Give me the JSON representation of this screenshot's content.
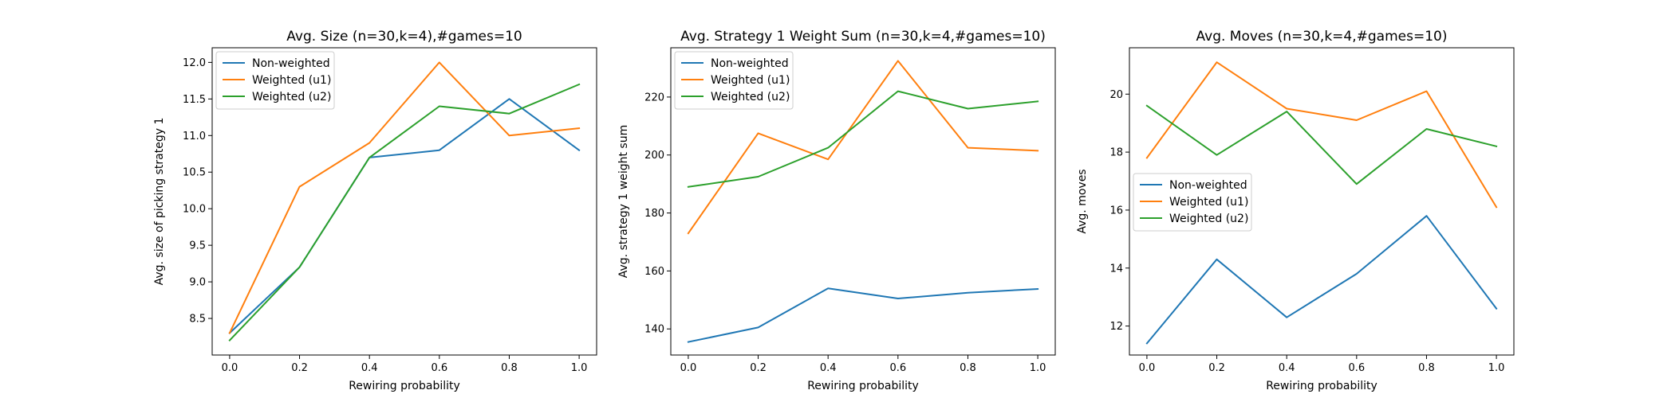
{
  "chart_data": [
    {
      "type": "line",
      "title": "Avg. Size (n=30,k=4),#games=10",
      "xlabel": "Rewiring probability",
      "ylabel": "Avg. size of picking strategy 1",
      "x": [
        0.0,
        0.2,
        0.4,
        0.6,
        0.8,
        1.0
      ],
      "xticks": [
        "0.0",
        "0.2",
        "0.4",
        "0.6",
        "0.8",
        "1.0"
      ],
      "xlim": [
        -0.05,
        1.05
      ],
      "yticks": [
        "8.5",
        "9.0",
        "9.5",
        "10.0",
        "10.5",
        "11.0",
        "11.5",
        "12.0"
      ],
      "ylim": [
        8.0,
        12.2
      ],
      "legend": "upper-left",
      "grid": false,
      "series": [
        {
          "name": "Non-weighted",
          "color": "#1f77b4",
          "values": [
            8.3,
            9.2,
            10.7,
            10.8,
            11.5,
            10.8
          ]
        },
        {
          "name": "Weighted (u1)",
          "color": "#ff7f0e",
          "values": [
            8.3,
            10.3,
            10.9,
            12.0,
            11.0,
            11.1
          ]
        },
        {
          "name": "Weighted (u2)",
          "color": "#2ca02c",
          "values": [
            8.2,
            9.2,
            10.7,
            11.4,
            11.3,
            11.7
          ]
        }
      ]
    },
    {
      "type": "line",
      "title": "Avg. Strategy 1 Weight Sum (n=30,k=4,#games=10)",
      "xlabel": "Rewiring probability",
      "ylabel": "Avg. strategy 1 weight sum",
      "x": [
        0.0,
        0.2,
        0.4,
        0.6,
        0.8,
        1.0
      ],
      "xticks": [
        "0.0",
        "0.2",
        "0.4",
        "0.6",
        "0.8",
        "1.0"
      ],
      "xlim": [
        -0.05,
        1.05
      ],
      "yticks": [
        "140",
        "160",
        "180",
        "200",
        "220"
      ],
      "ylim": [
        131,
        237
      ],
      "legend": "upper-left",
      "grid": false,
      "series": [
        {
          "name": "Non-weighted",
          "color": "#1f77b4",
          "values": [
            135.5,
            140.5,
            154.0,
            150.5,
            152.5,
            153.8
          ]
        },
        {
          "name": "Weighted (u1)",
          "color": "#ff7f0e",
          "values": [
            173.0,
            207.5,
            198.5,
            232.5,
            202.5,
            201.5
          ]
        },
        {
          "name": "Weighted (u2)",
          "color": "#2ca02c",
          "values": [
            189.0,
            192.5,
            202.5,
            222.0,
            216.0,
            218.5
          ]
        }
      ]
    },
    {
      "type": "line",
      "title": "Avg. Moves (n=30,k=4,#games=10)",
      "xlabel": "Rewiring probability",
      "ylabel": "Avg. moves",
      "x": [
        0.0,
        0.2,
        0.4,
        0.6,
        0.8,
        1.0
      ],
      "xticks": [
        "0.0",
        "0.2",
        "0.4",
        "0.6",
        "0.8",
        "1.0"
      ],
      "xlim": [
        -0.05,
        1.05
      ],
      "yticks": [
        "12",
        "14",
        "16",
        "18",
        "20"
      ],
      "ylim": [
        11.0,
        21.6
      ],
      "legend": "center-left",
      "grid": false,
      "series": [
        {
          "name": "Non-weighted",
          "color": "#1f77b4",
          "values": [
            11.4,
            14.3,
            12.3,
            13.8,
            15.8,
            12.6
          ]
        },
        {
          "name": "Weighted (u1)",
          "color": "#ff7f0e",
          "values": [
            17.8,
            21.1,
            19.5,
            19.1,
            20.1,
            16.1
          ]
        },
        {
          "name": "Weighted (u2)",
          "color": "#2ca02c",
          "values": [
            19.6,
            17.9,
            19.4,
            16.9,
            18.8,
            18.2
          ]
        }
      ]
    }
  ]
}
